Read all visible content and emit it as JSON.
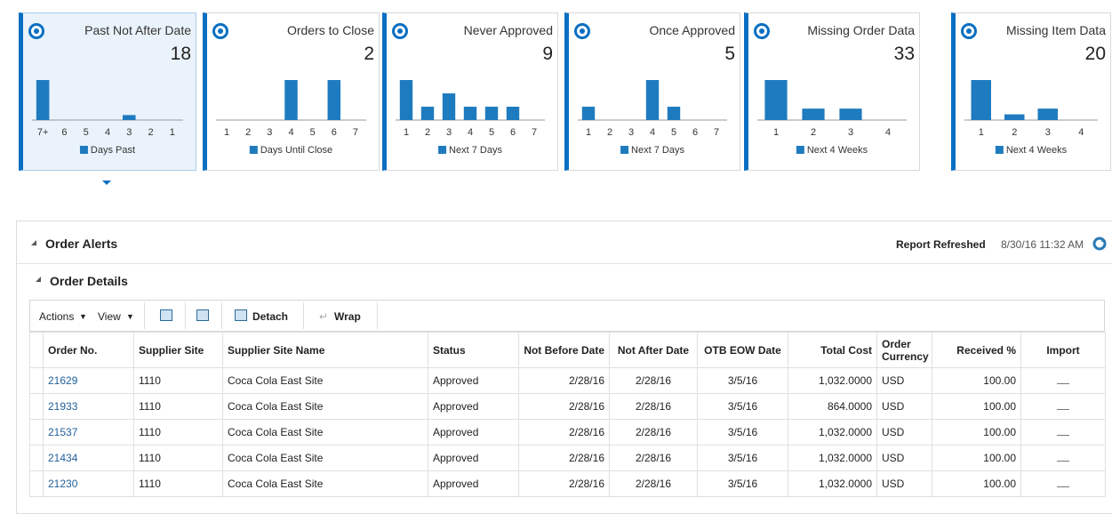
{
  "tiles": [
    {
      "title": "Past Not After Date",
      "count": 18,
      "chart_data": {
        "type": "bar",
        "categories": [
          "7+",
          "6",
          "5",
          "4",
          "3",
          "2",
          "1"
        ],
        "values": [
          16,
          0,
          0,
          0,
          2,
          0,
          0
        ],
        "legend": "Days Past",
        "color": "#1f7bbf"
      }
    },
    {
      "title": "Orders to Close",
      "count": 2,
      "chart_data": {
        "type": "bar",
        "categories": [
          "1",
          "2",
          "3",
          "4",
          "5",
          "6",
          "7"
        ],
        "values": [
          0,
          0,
          0,
          1,
          0,
          1,
          0
        ],
        "legend": "Days Until Close",
        "color": "#1f7bbf"
      }
    },
    {
      "title": "Never Approved",
      "count": 9,
      "chart_data": {
        "type": "bar",
        "categories": [
          "1",
          "2",
          "3",
          "4",
          "5",
          "6",
          "7"
        ],
        "values": [
          3,
          1,
          2,
          1,
          1,
          1,
          0
        ],
        "legend": "Next 7 Days",
        "color": "#1f7bbf"
      }
    },
    {
      "title": "Once Approved",
      "count": 5,
      "chart_data": {
        "type": "bar",
        "categories": [
          "1",
          "2",
          "3",
          "4",
          "5",
          "6",
          "7"
        ],
        "values": [
          1,
          0,
          0,
          3,
          1,
          0,
          0
        ],
        "legend": "Next 7 Days",
        "color": "#1f7bbf"
      }
    },
    {
      "title": "Missing Order Data",
      "count": 33,
      "chart_data": {
        "type": "bar",
        "categories": [
          "1",
          "2",
          "3",
          "4"
        ],
        "values": [
          21,
          6,
          6,
          0
        ],
        "legend": "Next 4 Weeks",
        "color": "#1f7bbf"
      }
    },
    {
      "title": "Missing Item Data",
      "count": 20,
      "chart_data": {
        "type": "bar",
        "categories": [
          "1",
          "2",
          "3",
          "4"
        ],
        "values": [
          14,
          2,
          4,
          0
        ],
        "legend": "Next 4 Weeks",
        "color": "#1f7bbf"
      }
    }
  ],
  "alerts": {
    "title": "Order Alerts",
    "refreshed_label": "Report Refreshed",
    "refreshed_time": "8/30/16 11:32 AM"
  },
  "details": {
    "title": "Order Details",
    "toolbar": {
      "actions": "Actions",
      "view": "View",
      "detach": "Detach",
      "wrap": "Wrap"
    },
    "table": {
      "columns": [
        "Order No.",
        "Supplier Site",
        "Supplier Site Name",
        "Status",
        "Not Before Date",
        "Not After Date",
        "OTB EOW Date",
        "Total Cost",
        "Order Currency",
        "Received %",
        "Import"
      ],
      "rows": [
        [
          "21629",
          "1110",
          "Coca Cola East Site",
          "Approved",
          "2/28/16",
          "2/28/16",
          "3/5/16",
          "1,032.0000",
          "USD",
          "100.00"
        ],
        [
          "21933",
          "1110",
          "Coca Cola East Site",
          "Approved",
          "2/28/16",
          "2/28/16",
          "3/5/16",
          "864.0000",
          "USD",
          "100.00"
        ],
        [
          "21537",
          "1110",
          "Coca Cola East Site",
          "Approved",
          "2/28/16",
          "2/28/16",
          "3/5/16",
          "1,032.0000",
          "USD",
          "100.00"
        ],
        [
          "21434",
          "1110",
          "Coca Cola East Site",
          "Approved",
          "2/28/16",
          "2/28/16",
          "3/5/16",
          "1,032.0000",
          "USD",
          "100.00"
        ],
        [
          "21230",
          "1110",
          "Coca Cola East Site",
          "Approved",
          "2/28/16",
          "2/28/16",
          "3/5/16",
          "1,032.0000",
          "USD",
          "100.00"
        ]
      ]
    }
  }
}
